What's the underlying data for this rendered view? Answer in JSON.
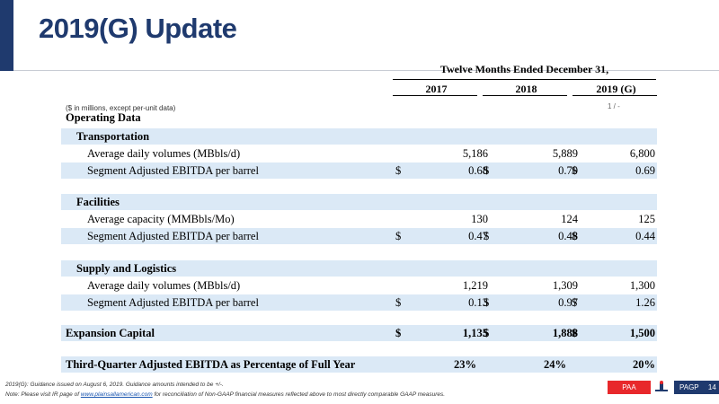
{
  "slide": {
    "title": "2019(G) Update",
    "units_note": "($ in millions, except per-unit data)",
    "stray_mark": "1 / -"
  },
  "table": {
    "period_header": "Twelve Months Ended December 31,",
    "columns": [
      "2017",
      "2018",
      "2019 (G)"
    ],
    "section_operating": "Operating Data",
    "transportation": {
      "heading": "Transportation",
      "rows": [
        {
          "label": "Average daily volumes (MBbls/d)",
          "currency": [
            "",
            "",
            ""
          ],
          "values": [
            "5,186",
            "5,889",
            "6,800"
          ]
        },
        {
          "label": "Segment Adjusted EBITDA per barrel",
          "currency": [
            "$",
            "$",
            "$"
          ],
          "values": [
            "0.68",
            "0.70",
            "0.69"
          ]
        }
      ]
    },
    "facilities": {
      "heading": "Facilities",
      "rows": [
        {
          "label": "Average capacity (MMBbls/Mo)",
          "currency": [
            "",
            "",
            ""
          ],
          "values": [
            "130",
            "124",
            "125"
          ]
        },
        {
          "label": "Segment Adjusted EBITDA per barrel",
          "currency": [
            "$",
            "$",
            "$"
          ],
          "values": [
            "0.47",
            "0.48",
            "0.44"
          ]
        }
      ]
    },
    "supply": {
      "heading": "Supply and Logistics",
      "rows": [
        {
          "label": "Average daily volumes (MBbls/d)",
          "currency": [
            "",
            "",
            ""
          ],
          "values": [
            "1,219",
            "1,309",
            "1,300"
          ]
        },
        {
          "label": "Segment Adjusted EBITDA per barrel",
          "currency": [
            "$",
            "$",
            "$"
          ],
          "values": [
            "0.13",
            "0.97",
            "1.26"
          ]
        }
      ]
    },
    "expansion": {
      "label": "Expansion Capital",
      "currency": [
        "$",
        "$",
        "$"
      ],
      "values": [
        "1,135",
        "1,888",
        "1,500"
      ]
    },
    "third_quarter": {
      "label": "Third-Quarter Adjusted EBITDA as Percentage of Full Year",
      "values": [
        "23%",
        "24%",
        "20%"
      ]
    }
  },
  "footer": {
    "guidance_note": "2019(G): Guidance issued on August 6, 2019.  Guidance amounts intended to be +/-.",
    "note_prefix": "Note: Please visit IR page of ",
    "note_link": "www.plainsallamerican.com",
    "note_suffix": " for reconciliation of Non-GAAP financial measures reflected above to most directly comparable GAAP measures.",
    "paa_label": "PAA",
    "pagp_label": "PAGP",
    "page_number": "14"
  },
  "colors": {
    "brand_navy": "#1f3a6e",
    "row_blue": "#dbe9f6",
    "paa_red": "#e8282b",
    "link_blue": "#1a56b0"
  }
}
